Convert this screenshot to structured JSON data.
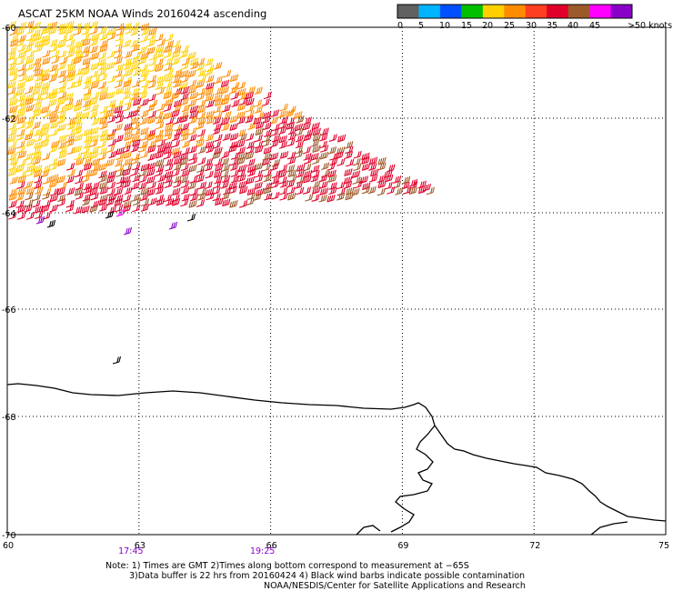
{
  "title": "ASCAT 25KM NOAA Winds 20160424 ascending",
  "legend": {
    "ticks": [
      "0",
      "5",
      "10",
      "15",
      "20",
      "25",
      "30",
      "35",
      "40",
      "45",
      ">50 knots"
    ],
    "colors": [
      "#606060",
      "#00b4ff",
      "#0050ff",
      "#00c000",
      "#ffd000",
      "#ff8c00",
      "#ff4020",
      "#e0002a",
      "#9c5a2a",
      "#ff00ff",
      "#8a00c8"
    ]
  },
  "map": {
    "lat_labels": [
      "-60",
      "-62",
      "-64",
      "-66",
      "-68",
      "-70"
    ],
    "lon_labels": [
      "60",
      "63",
      "66",
      "69",
      "72",
      "75"
    ],
    "lat_range": [
      -70,
      -60
    ],
    "lon_range": [
      60,
      75
    ],
    "gridlines": true,
    "overpass_times": [
      {
        "label": "17:45",
        "lon": 62.8
      },
      {
        "label": "19:25",
        "lon": 65.8
      }
    ],
    "wind_colors": {
      "yellow": "#ffd000",
      "orange": "#ff8c00",
      "red": "#e0002a",
      "brown": "#9c5a2a",
      "magenta": "#ff00ff",
      "purple": "#8a00c8",
      "black": "#000000"
    }
  },
  "notes": {
    "line1": "Note: 1) Times are GMT 2)Times along bottom correspond to measurement at −65S",
    "line2": "3)Data buffer is 22 hrs from 20160424 4) Black wind barbs indicate possible contamination",
    "line3": "NOAA/NESDIS/Center for Satellite Applications and Research"
  }
}
